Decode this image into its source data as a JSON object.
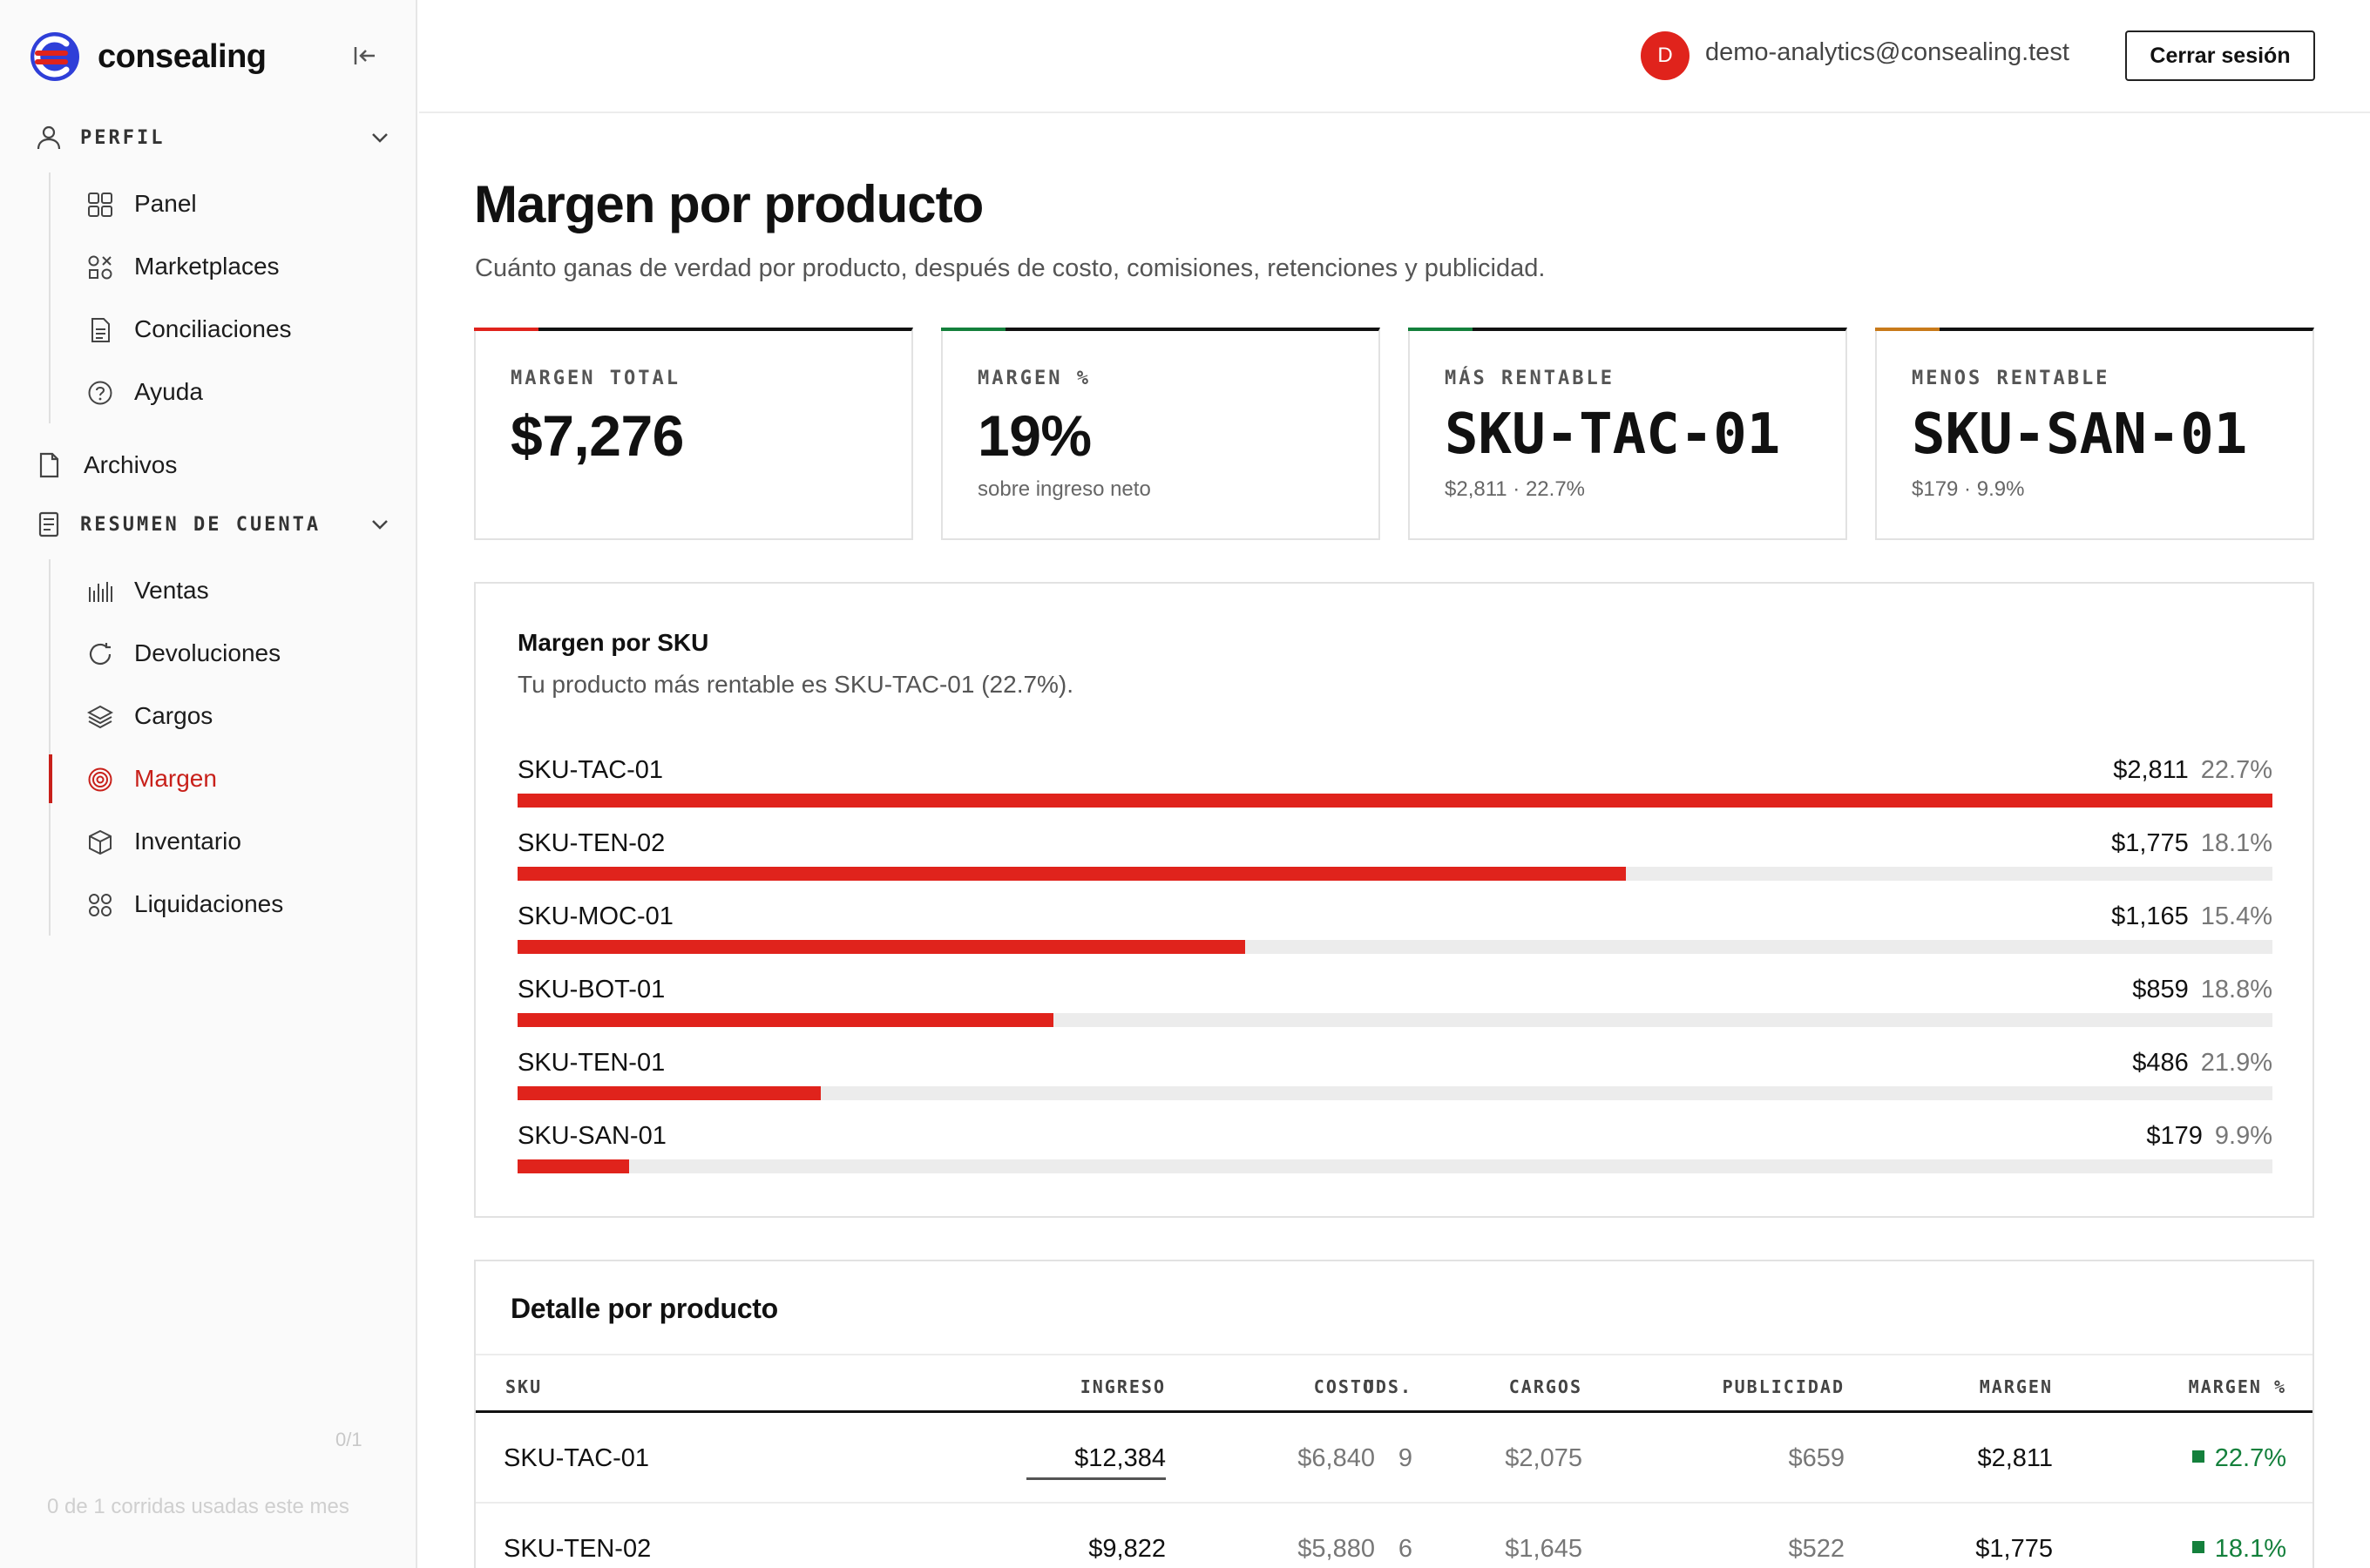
{
  "app": {
    "name": "consealing"
  },
  "sidebar": {
    "sections": [
      {
        "label": "PERFIL",
        "items": [
          "Panel",
          "Marketplaces",
          "Conciliaciones",
          "Ayuda"
        ]
      },
      {
        "label": "RESUMEN DE CUENTA",
        "items": [
          "Ventas",
          "Devoluciones",
          "Cargos",
          "Margen",
          "Inventario",
          "Liquidaciones"
        ]
      }
    ],
    "archivos": "Archivos",
    "active_item": "Margen",
    "usage_count": "0/1",
    "usage_text": "0 de 1 corridas usadas este mes"
  },
  "header": {
    "avatar_initial": "D",
    "email": "demo-analytics@consealing.test",
    "logout": "Cerrar sesión"
  },
  "page": {
    "title": "Margen por producto",
    "subtitle": "Cuánto ganas de verdad por producto, después de costo, comisiones, retenciones y publicidad."
  },
  "kpis": [
    {
      "label": "MARGEN TOTAL",
      "value": "$7,276",
      "sub": "",
      "accent": "#e0231c"
    },
    {
      "label": "MARGEN %",
      "value": "19%",
      "sub": "sobre ingreso neto",
      "accent": "#14803c"
    },
    {
      "label": "MÁS RENTABLE",
      "value": "SKU-TAC-01",
      "sub": "$2,811 · 22.7%",
      "accent": "#14803c"
    },
    {
      "label": "MENOS RENTABLE",
      "value": "SKU-SAN-01",
      "sub": "$179 · 9.9%",
      "accent": "#c87a1a"
    }
  ],
  "chart": {
    "title": "Margen por SKU",
    "subtitle": "Tu producto más rentable es SKU-TAC-01 (22.7%)."
  },
  "chart_data": {
    "type": "bar",
    "orientation": "horizontal",
    "categories": [
      "SKU-TAC-01",
      "SKU-TEN-02",
      "SKU-MOC-01",
      "SKU-BOT-01",
      "SKU-TEN-01",
      "SKU-SAN-01"
    ],
    "values": [
      2811,
      1775,
      1165,
      859,
      486,
      179
    ],
    "value_labels": [
      "$2,811",
      "$1,775",
      "$1,165",
      "$859",
      "$486",
      "$179"
    ],
    "pct_labels": [
      "22.7%",
      "18.1%",
      "15.4%",
      "18.8%",
      "21.9%",
      "9.9%"
    ],
    "title": "Margen por SKU",
    "color": "#e0231c"
  },
  "table": {
    "title": "Detalle por producto",
    "columns": [
      "SKU",
      "UDS.",
      "INGRESO",
      "COSTO",
      "CARGOS",
      "PUBLICIDAD",
      "MARGEN",
      "MARGEN %"
    ],
    "rows": [
      [
        "SKU-TAC-01",
        "9",
        "$12,384",
        "$6,840",
        "$2,075",
        "$659",
        "$2,811",
        "22.7%"
      ],
      [
        "SKU-TEN-02",
        "6",
        "$9,822",
        "$5,880",
        "$1,645",
        "$522",
        "$1,775",
        "18.1%"
      ]
    ]
  }
}
